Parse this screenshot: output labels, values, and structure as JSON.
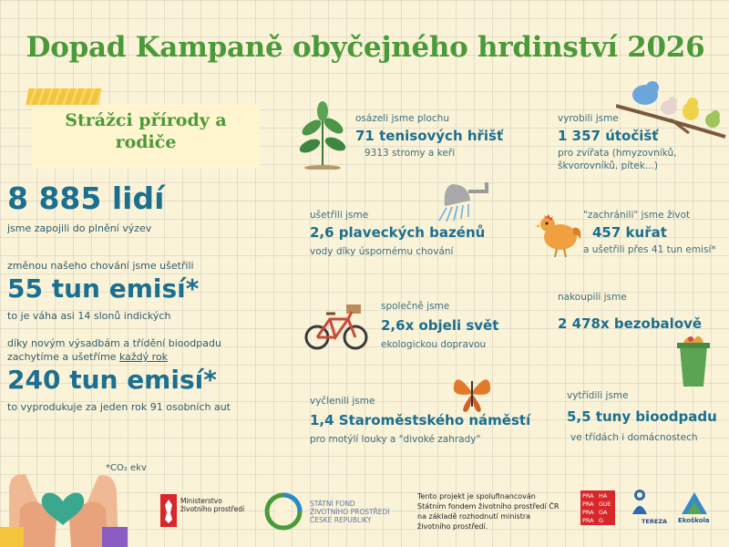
{
  "title": "Dopad Kampaně obyčejného hrdinství 2026",
  "subtitle": "Strážci přírody a rodiče",
  "left": {
    "people_value": "8 885 lidí",
    "people_desc": "jsme zapojili do plnění výzev",
    "emissions1_intro": "změnou našeho chování jsme ušetřili",
    "emissions1_value": "55 tun emisí*",
    "emissions1_desc": "to je váha asi 14 slonů indických",
    "emissions2_intro1": "díky novým výsadbám a třídění bioodpadu",
    "emissions2_intro2": "zachytíme a ušetříme ",
    "emissions2_intro2_u": "každý rok",
    "emissions2_value": "240 tun emisí*",
    "emissions2_desc": "to vyprodukuje za jeden rok 91 osobních aut",
    "footnote": "*CO₂ ekv"
  },
  "stats": {
    "planted_intro": "osázeli jsme plochu",
    "planted_value": "71 tenisových hřišť",
    "planted_desc": "9313 stromy a keři",
    "shelters_intro": "vyrobili jsme",
    "shelters_value": "1 357 útočišť",
    "shelters_desc1": "pro zvířata (hmyzovníků,",
    "shelters_desc2": "škvorovníků, pítek...)",
    "water_intro": "ušetřili jsme",
    "water_value": "2,6 plaveckých bazénů",
    "water_desc": "vody díky úspornému chování",
    "chickens_intro": "\"zachránili\" jsme život",
    "chickens_value": "457 kuřat",
    "chickens_desc": "a ušetřili přes 41 tun emisí*",
    "world_intro": "společně jsme",
    "world_value": "2,6x objeli svět",
    "world_desc": "ekologickou dopravou",
    "packfree_intro": "nakoupili jsme",
    "packfree_value": "2 478x bezobalově",
    "meadow_intro": "vyčlenili jsme",
    "meadow_value": "1,4 Staroměstského náměstí",
    "meadow_desc": "pro motýlí louky a \"divoké zahrady\"",
    "bio_intro": "vytřídili jsme",
    "bio_value": "5,5 tuny bioodpadu",
    "bio_desc": "ve třídách i domácnostech"
  },
  "footer": {
    "ministry1": "Ministerstvo",
    "ministry2": "životního prostředí",
    "fund1": "STÁTNÍ FOND",
    "fund2": "ŽIVOTNÍHO PROSTŘEDÍ",
    "fund3": "ČESKÉ REPUBLIKY",
    "note1": "Tento projekt je spolufinancován",
    "note2": "Státním fondem životního prostředí ČR",
    "note3": "na základě rozhodnutí ministra",
    "note4": "životního prostředí.",
    "praha1": "PRA",
    "praha2": "HA",
    "praha3": "PRA",
    "praha4": "GUE",
    "praha5": "PRA",
    "praha6": "GA",
    "praha7": "PRA",
    "praha8": "G",
    "tereza": "TEREZA",
    "ekoskola": "Ekoškola"
  }
}
